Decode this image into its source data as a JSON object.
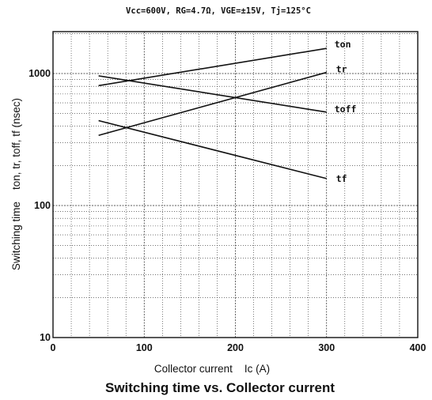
{
  "conditions": "Vcc=600V, RG=4.7Ω, VGE=±15V, Tj=125°C",
  "caption": "Switching time vs. Collector current",
  "chart_data": {
    "type": "line",
    "title": "Vcc=600V, RG=4.7Ω, VGE=±15V, Tj=125°C",
    "xlabel": "Collector current    Ic (A)",
    "ylabel": "Switching time    ton, tr, toff, tf (nsec)",
    "xlim": [
      0,
      400
    ],
    "ylim": [
      10,
      2000
    ],
    "yscale": "log",
    "grid": true,
    "x_ticks": [
      "0",
      "100",
      "200",
      "300",
      "400"
    ],
    "y_ticks": [
      {
        "value": 10,
        "label": "10"
      },
      {
        "value": 100,
        "label": "100"
      },
      {
        "value": 1000,
        "label": "1000"
      }
    ],
    "series": [
      {
        "name": "ton",
        "x": [
          50,
          300
        ],
        "y": [
          810,
          1550
        ]
      },
      {
        "name": "tr",
        "x": [
          50,
          300
        ],
        "y": [
          340,
          1020
        ]
      },
      {
        "name": "toff",
        "x": [
          50,
          300
        ],
        "y": [
          960,
          510
        ]
      },
      {
        "name": "tf",
        "x": [
          50,
          300
        ],
        "y": [
          440,
          160
        ]
      }
    ]
  }
}
